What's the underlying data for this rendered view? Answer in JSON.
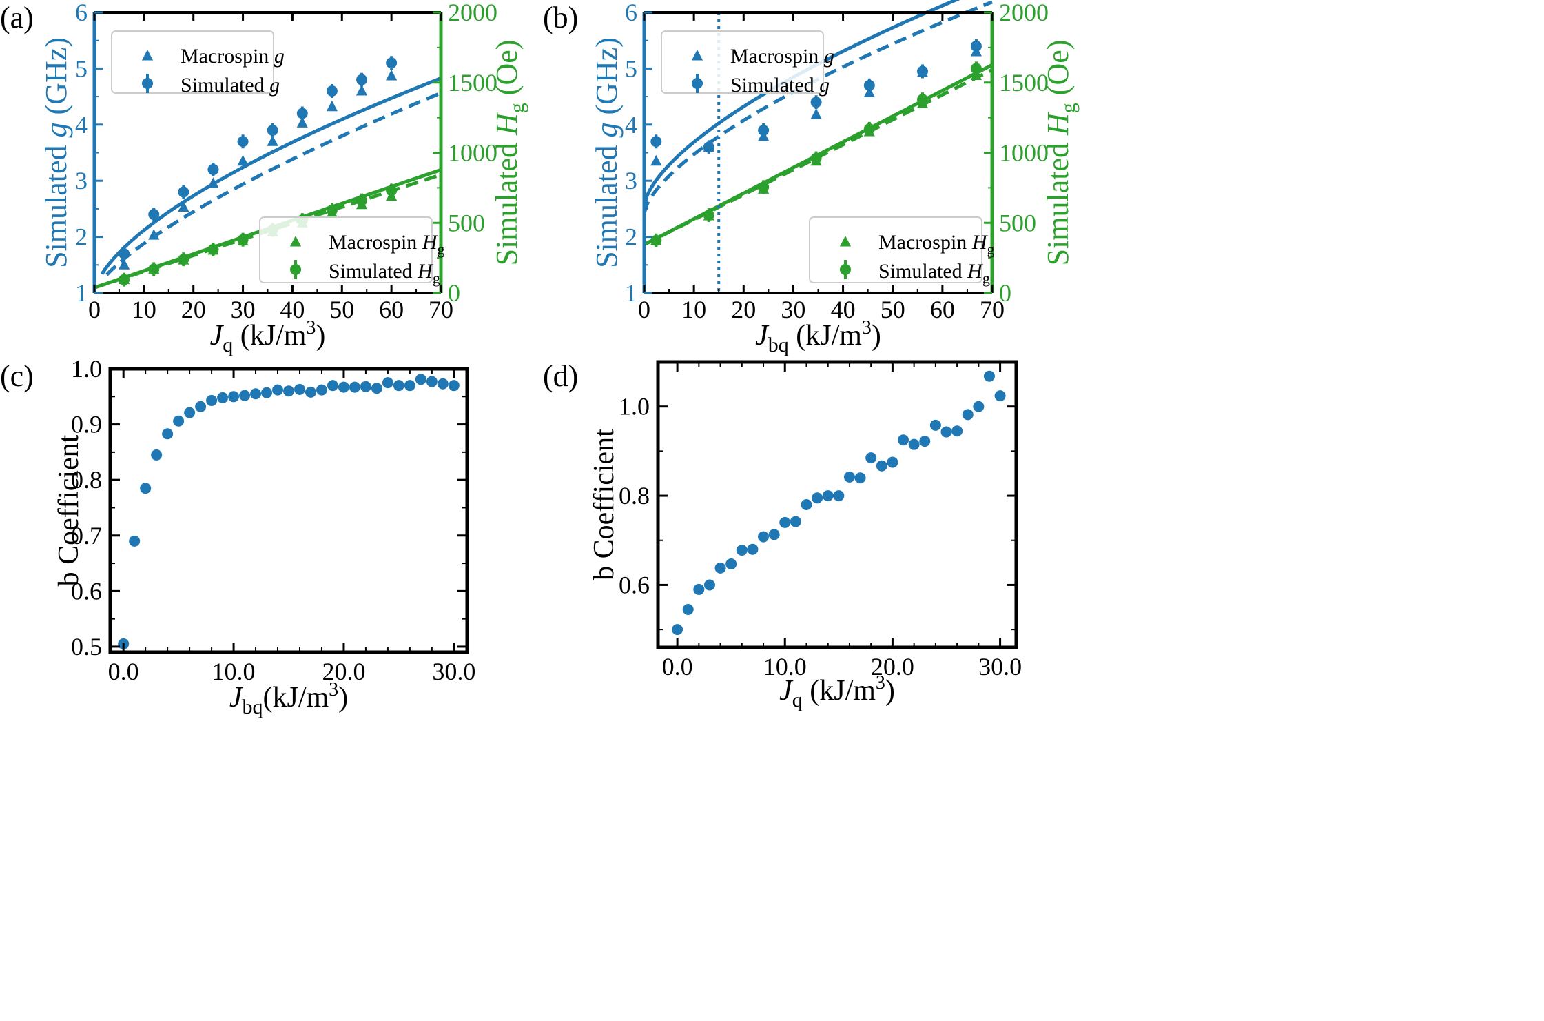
{
  "figure": {
    "colors": {
      "blue": "#1f77b4",
      "green": "#2ca02c",
      "black": "#000000"
    }
  },
  "chart_data": [
    {
      "id": "a",
      "type": "scatter",
      "panel_label": "(a)",
      "xlabel_main": "J",
      "xlabel_sub": "q",
      "xlabel_unit": " (kJ/m",
      "xlabel_sup": "3",
      "xlabel_end": ")",
      "ylabel_left": {
        "pre": "Simulated ",
        "italic": "g",
        "post": " (GHz)"
      },
      "ylabel_right": {
        "pre": "Simulated ",
        "italic": "H",
        "sub": "g",
        "post": " (Oe)"
      },
      "xlim": [
        0,
        70
      ],
      "ylim_left": [
        1,
        6
      ],
      "ylim_right": [
        0,
        2000
      ],
      "xticks": [
        0,
        10,
        20,
        30,
        40,
        50,
        60,
        70
      ],
      "yticks_left": [
        1,
        2,
        3,
        4,
        5,
        6
      ],
      "yticks_right": [
        0,
        500,
        1000,
        1500,
        2000
      ],
      "legend_top": [
        {
          "label": "Macrospin ",
          "italic": "g",
          "marker": "triangle"
        },
        {
          "label": "Simulated ",
          "italic": "g",
          "marker": "circle"
        }
      ],
      "legend_bottom": [
        {
          "label": "Macrospin ",
          "italic": "H",
          "sub": "g",
          "marker": "triangle"
        },
        {
          "label": "Simulated ",
          "italic": "H",
          "sub": "g",
          "marker": "circle"
        }
      ],
      "series": [
        {
          "name": "Macrospin g",
          "axis": "left",
          "marker": "triangle",
          "x": [
            6,
            12,
            18,
            24,
            30,
            36,
            42,
            48,
            54,
            60
          ],
          "y": [
            1.5,
            2.03,
            2.53,
            2.95,
            3.35,
            3.7,
            4.03,
            4.32,
            4.6,
            4.87
          ]
        },
        {
          "name": "Simulated g",
          "axis": "left",
          "marker": "circle",
          "x": [
            6,
            12,
            18,
            24,
            30,
            36,
            42,
            48,
            54,
            60
          ],
          "y": [
            1.7,
            2.4,
            2.8,
            3.2,
            3.7,
            3.9,
            4.2,
            4.6,
            4.8,
            5.1
          ]
        },
        {
          "name": "Macrospin Hg",
          "axis": "right",
          "marker": "triangle",
          "x": [
            6,
            12,
            18,
            24,
            30,
            36,
            42,
            48,
            54,
            60
          ],
          "y": [
            95,
            170,
            235,
            305,
            370,
            435,
            500,
            570,
            630,
            690
          ]
        },
        {
          "name": "Simulated Hg",
          "axis": "right",
          "marker": "circle",
          "x": [
            6,
            12,
            18,
            24,
            30,
            36,
            42,
            48,
            54,
            60
          ],
          "y": [
            95,
            170,
            240,
            310,
            380,
            450,
            520,
            590,
            660,
            730
          ]
        }
      ],
      "fits": [
        {
          "name": "g fit (solid)",
          "axis": "left",
          "style": "solid",
          "x0": 1.5,
          "x1": 70,
          "a": 0.26,
          "p": 0.633
        },
        {
          "name": "g fit (dashed)",
          "axis": "left",
          "style": "dashed",
          "x0": 2.5,
          "x1": 70,
          "a": 0.168,
          "p": 0.719
        },
        {
          "name": "Hg fit (solid)",
          "axis": "right",
          "style": "solid",
          "x0": 0,
          "x1": 70,
          "c": 38,
          "m": 12.0
        },
        {
          "name": "Hg fit (dashed)",
          "axis": "right",
          "style": "dashed",
          "x0": 0,
          "x1": 70,
          "c": 38,
          "m": 11.5
        }
      ]
    },
    {
      "id": "b",
      "type": "scatter",
      "panel_label": "(b)",
      "xlabel_main": "J",
      "xlabel_sub": "bq",
      "xlabel_unit": " (kJ/m",
      "xlabel_sup": "3",
      "xlabel_end": ")",
      "ylabel_left": {
        "pre": "Simulated ",
        "italic": "g",
        "post": " (GHz)"
      },
      "ylabel_right": {
        "pre": "Simulated ",
        "italic": "H",
        "sub": "g",
        "post": " (Oe)"
      },
      "xlim": [
        0,
        70
      ],
      "ylim_left": [
        1,
        6
      ],
      "ylim_right": [
        0,
        2000
      ],
      "xticks": [
        0,
        10,
        20,
        30,
        40,
        50,
        60,
        70
      ],
      "yticks_left": [
        1,
        2,
        3,
        4,
        5,
        6
      ],
      "yticks_right": [
        0,
        500,
        1000,
        1500,
        2000
      ],
      "vline_x": 15,
      "legend_top": [
        {
          "label": "Macrospin ",
          "italic": "g",
          "marker": "triangle"
        },
        {
          "label": "Simulated ",
          "italic": "g",
          "marker": "circle"
        }
      ],
      "legend_bottom": [
        {
          "label": "Macrospin ",
          "italic": "H",
          "sub": "g",
          "marker": "triangle"
        },
        {
          "label": "Simulated ",
          "italic": "H",
          "sub": "g",
          "marker": "circle"
        }
      ],
      "series": [
        {
          "name": "Macrospin g",
          "axis": "left",
          "marker": "triangle",
          "x": [
            2.4,
            13,
            24,
            34.6,
            45.3,
            56,
            66.8
          ],
          "y": [
            3.35,
            3.6,
            3.79,
            4.18,
            4.57,
            4.93,
            5.3
          ]
        },
        {
          "name": "Simulated g",
          "axis": "left",
          "marker": "circle",
          "x": [
            2.4,
            13,
            24,
            34.6,
            45.3,
            56,
            66.8
          ],
          "y": [
            3.7,
            3.6,
            3.9,
            4.4,
            4.7,
            4.95,
            5.4
          ]
        },
        {
          "name": "Macrospin Hg",
          "axis": "right",
          "marker": "triangle",
          "x": [
            2.4,
            13,
            24,
            34.6,
            45.3,
            56,
            66.8
          ],
          "y": [
            375,
            550,
            740,
            940,
            1150,
            1350,
            1550
          ]
        },
        {
          "name": "Simulated Hg",
          "axis": "right",
          "marker": "circle",
          "x": [
            2.4,
            13,
            24,
            34.6,
            45.3,
            56,
            66.8
          ],
          "y": [
            375,
            555,
            755,
            960,
            1170,
            1380,
            1600
          ]
        }
      ],
      "fits": [
        {
          "name": "g fit (solid)",
          "axis": "left",
          "style": "solid",
          "x0": 0,
          "x1": 70,
          "b": 2.55,
          "a": 0.262,
          "p": 0.638
        },
        {
          "name": "g fit (dashed)",
          "axis": "left",
          "style": "dashed",
          "x0": 0,
          "x1": 70,
          "b": 2.42,
          "a": 0.232,
          "p": 0.656
        },
        {
          "name": "Hg fit (solid)",
          "axis": "right",
          "style": "solid",
          "x0": 0,
          "x1": 70,
          "c": 345,
          "m": 18.3
        },
        {
          "name": "Hg fit (dashed)",
          "axis": "right",
          "style": "dashed",
          "x0": 0,
          "x1": 70,
          "c": 345,
          "m": 17.8
        }
      ]
    },
    {
      "id": "c",
      "type": "scatter",
      "panel_label": "(c)",
      "xlabel_main": "J",
      "xlabel_sub": "bq",
      "xlabel_unit": "(kJ/m",
      "xlabel_sup": "3",
      "xlabel_end": ")",
      "ylabel": "b Coefficient",
      "xlim": [
        -1.2,
        31.2
      ],
      "ylim": [
        0.49,
        1.0
      ],
      "xticks": [
        0,
        10,
        20,
        30
      ],
      "xticklabels": [
        "0.0",
        "10.0",
        "20.0",
        "30.0"
      ],
      "yticks": [
        0.5,
        0.6,
        0.7,
        0.8,
        0.9,
        1.0
      ],
      "yticklabels": [
        "0.5",
        "0.6",
        "0.7",
        "0.8",
        "0.9",
        "1.0"
      ],
      "x": [
        0,
        1,
        2,
        3,
        4,
        5,
        6,
        7,
        8,
        9,
        10,
        11,
        12,
        13,
        14,
        15,
        16,
        17,
        18,
        19,
        20,
        21,
        22,
        23,
        24,
        25,
        26,
        27,
        28,
        29,
        30
      ],
      "y": [
        0.505,
        0.69,
        0.785,
        0.845,
        0.883,
        0.906,
        0.921,
        0.932,
        0.943,
        0.948,
        0.95,
        0.952,
        0.955,
        0.957,
        0.962,
        0.96,
        0.963,
        0.958,
        0.962,
        0.97,
        0.967,
        0.967,
        0.968,
        0.965,
        0.975,
        0.97,
        0.97,
        0.981,
        0.977,
        0.973,
        0.97
      ]
    },
    {
      "id": "d",
      "type": "scatter",
      "panel_label": "(d)",
      "xlabel_main": "J",
      "xlabel_sub": "q",
      "xlabel_unit": " (kJ/m",
      "xlabel_sup": "3",
      "xlabel_end": ")",
      "ylabel": "b Coefficient",
      "xlim": [
        -1.8,
        31.5
      ],
      "ylim": [
        0.46,
        1.1
      ],
      "xticks": [
        0,
        10,
        20,
        30
      ],
      "xticklabels": [
        "0.0",
        "10.0",
        "20.0",
        "30.0"
      ],
      "yticks": [
        0.6,
        0.8,
        1.0
      ],
      "yticklabels": [
        "0.6",
        "0.8",
        "1.0"
      ],
      "x": [
        0,
        1,
        2,
        3,
        4,
        5,
        6,
        7,
        8,
        9,
        10,
        11,
        12,
        13,
        14,
        15,
        16,
        17,
        18,
        19,
        20,
        21,
        22,
        23,
        24,
        25,
        26,
        27,
        28,
        29,
        30
      ],
      "y": [
        0.5,
        0.545,
        0.59,
        0.6,
        0.638,
        0.647,
        0.678,
        0.68,
        0.708,
        0.713,
        0.74,
        0.742,
        0.78,
        0.795,
        0.8,
        0.8,
        0.842,
        0.84,
        0.885,
        0.867,
        0.875,
        0.925,
        0.915,
        0.922,
        0.958,
        0.943,
        0.945,
        0.982,
        1.0,
        1.068,
        1.024
      ]
    }
  ]
}
